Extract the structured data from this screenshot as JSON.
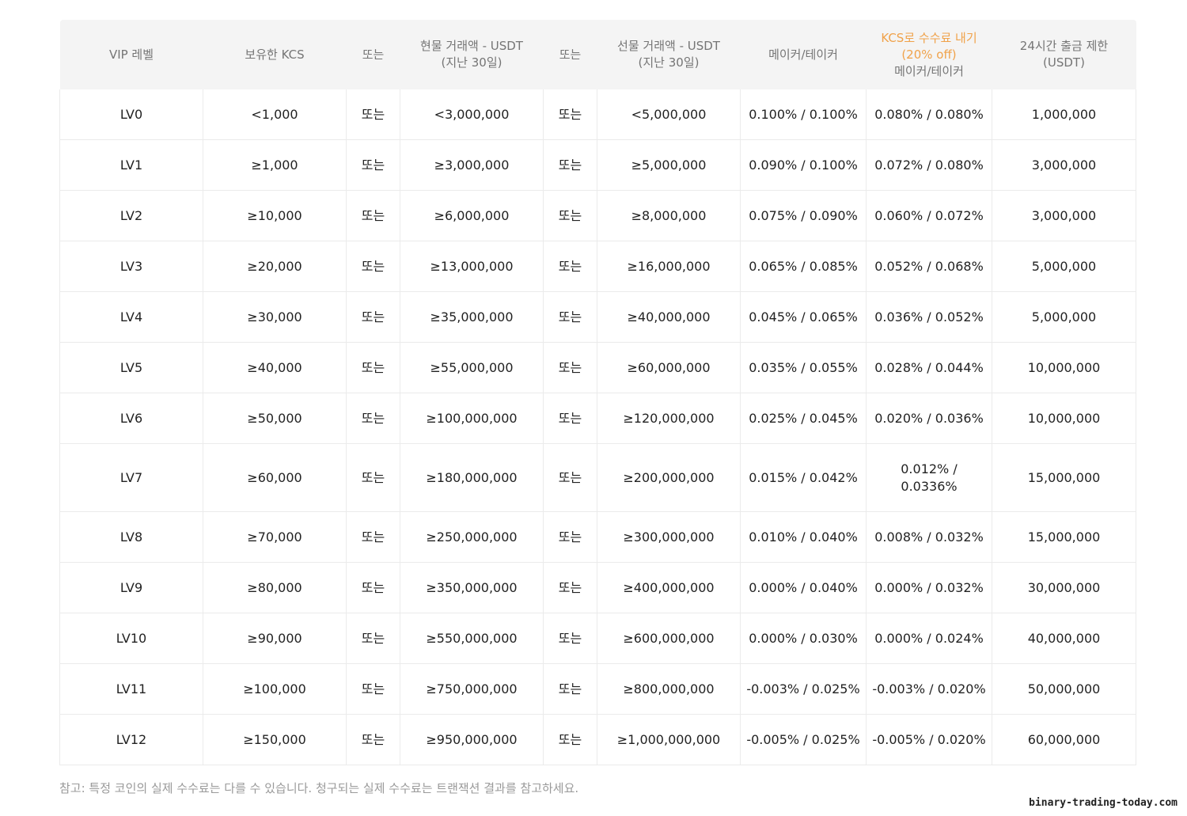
{
  "table": {
    "headers": [
      {
        "line1": "VIP 레벨"
      },
      {
        "line1": "보유한 KCS"
      },
      {
        "line1": "또는"
      },
      {
        "line1": "현물 거래액 - USDT",
        "line2": "(지난 30일)"
      },
      {
        "line1": "또는"
      },
      {
        "line1": "선물 거래액 - USDT",
        "line2": "(지난 30일)"
      },
      {
        "line1": "메이커/테이커"
      },
      {
        "accent": "KCS로 수수료 내기(20% off)",
        "line2": "메이커/테이커"
      },
      {
        "line1": "24시간 출금 제한",
        "line2": "(USDT)"
      }
    ],
    "rows": [
      [
        "LV0",
        "<1,000",
        "또는",
        "<3,000,000",
        "또는",
        "<5,000,000",
        "0.100% / 0.100%",
        "0.080% / 0.080%",
        "1,000,000"
      ],
      [
        "LV1",
        "≥1,000",
        "또는",
        "≥3,000,000",
        "또는",
        "≥5,000,000",
        "0.090% / 0.100%",
        "0.072% / 0.080%",
        "3,000,000"
      ],
      [
        "LV2",
        "≥10,000",
        "또는",
        "≥6,000,000",
        "또는",
        "≥8,000,000",
        "0.075% / 0.090%",
        "0.060% / 0.072%",
        "3,000,000"
      ],
      [
        "LV3",
        "≥20,000",
        "또는",
        "≥13,000,000",
        "또는",
        "≥16,000,000",
        "0.065% / 0.085%",
        "0.052% / 0.068%",
        "5,000,000"
      ],
      [
        "LV4",
        "≥30,000",
        "또는",
        "≥35,000,000",
        "또는",
        "≥40,000,000",
        "0.045% / 0.065%",
        "0.036% / 0.052%",
        "5,000,000"
      ],
      [
        "LV5",
        "≥40,000",
        "또는",
        "≥55,000,000",
        "또는",
        "≥60,000,000",
        "0.035% / 0.055%",
        "0.028% / 0.044%",
        "10,000,000"
      ],
      [
        "LV6",
        "≥50,000",
        "또는",
        "≥100,000,000",
        "또는",
        "≥120,000,000",
        "0.025% / 0.045%",
        "0.020% / 0.036%",
        "10,000,000"
      ],
      [
        "LV7",
        "≥60,000",
        "또는",
        "≥180,000,000",
        "또는",
        "≥200,000,000",
        "0.015% / 0.042%",
        "0.012% / 0.0336%",
        "15,000,000"
      ],
      [
        "LV8",
        "≥70,000",
        "또는",
        "≥250,000,000",
        "또는",
        "≥300,000,000",
        "0.010% / 0.040%",
        "0.008% / 0.032%",
        "15,000,000"
      ],
      [
        "LV9",
        "≥80,000",
        "또는",
        "≥350,000,000",
        "또는",
        "≥400,000,000",
        "0.000% / 0.040%",
        "0.000% / 0.032%",
        "30,000,000"
      ],
      [
        "LV10",
        "≥90,000",
        "또는",
        "≥550,000,000",
        "또는",
        "≥600,000,000",
        "0.000% / 0.030%",
        "0.000% / 0.024%",
        "40,000,000"
      ],
      [
        "LV11",
        "≥100,000",
        "또는",
        "≥750,000,000",
        "또는",
        "≥800,000,000",
        "-0.003% / 0.025%",
        "-0.003% / 0.020%",
        "50,000,000"
      ],
      [
        "LV12",
        "≥150,000",
        "또는",
        "≥950,000,000",
        "또는",
        "≥1,000,000,000",
        "-0.005% / 0.025%",
        "-0.005% / 0.020%",
        "60,000,000"
      ]
    ]
  },
  "note": "참고: 특정 코인의 실제 수수료는 다를 수 있습니다. 청구되는 실제 수수료는 트랜잭션 결과를 참고하세요.",
  "watermark": "binary-trading-today.com",
  "colors": {
    "header_bg": "#f4f4f4",
    "header_text": "#757575",
    "accent": "#f0a24a",
    "border": "#ebebeb",
    "note_text": "#9a9a9a"
  }
}
